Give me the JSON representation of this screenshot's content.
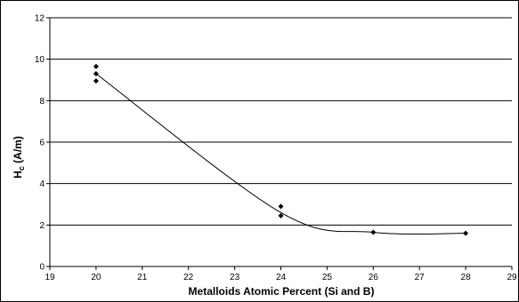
{
  "chart_data": {
    "type": "scatter",
    "title": "",
    "xlabel": "Metalloids Atomic Percent (Si and B)",
    "ylabel": {
      "main": "H",
      "sub": "c",
      "unit": " (A/m)"
    },
    "xlim": [
      19,
      29
    ],
    "ylim": [
      0,
      12
    ],
    "x_ticks": [
      "19",
      "20",
      "21",
      "22",
      "23",
      "24",
      "25",
      "26",
      "27",
      "28",
      "29"
    ],
    "y_ticks": [
      "0",
      "2",
      "4",
      "6",
      "8",
      "10",
      "12"
    ],
    "grid": "horizontal",
    "legend": "none",
    "marker_color": "#000000",
    "line_color": "#000000",
    "series": [
      {
        "points": [
          {
            "x": 20,
            "y": 9.65
          },
          {
            "x": 20,
            "y": 9.3
          },
          {
            "x": 20,
            "y": 8.95
          },
          {
            "x": 24,
            "y": 2.9
          },
          {
            "x": 24,
            "y": 2.45
          },
          {
            "x": 26,
            "y": 1.65
          },
          {
            "x": 28,
            "y": 1.6
          }
        ],
        "trendline": [
          {
            "x": 20,
            "y": 9.3
          },
          {
            "x": 24,
            "y": 2.6
          },
          {
            "x": 26,
            "y": 1.65
          },
          {
            "x": 28,
            "y": 1.6
          }
        ]
      }
    ]
  }
}
